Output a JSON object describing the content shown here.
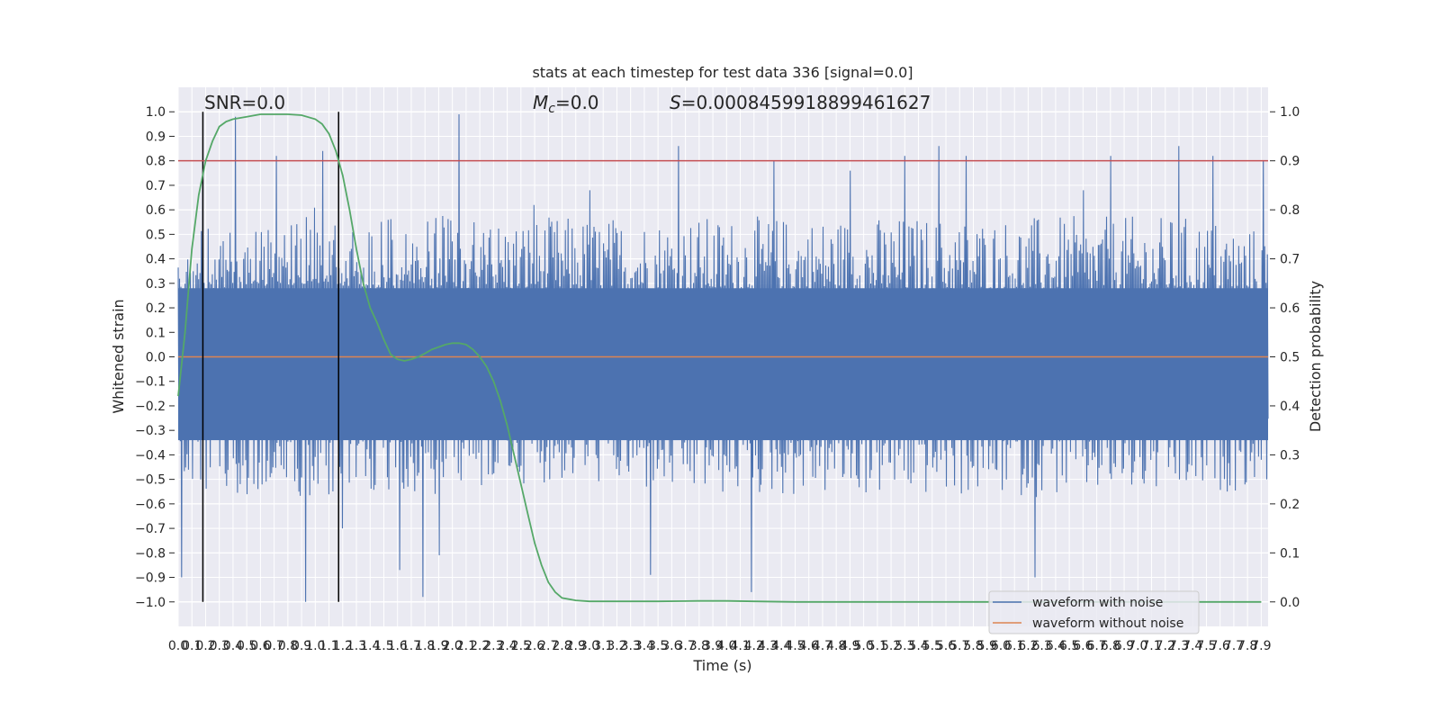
{
  "chart_data": {
    "type": "line",
    "title": "stats at each timestep for test data 336 [signal=0.0]",
    "xlabel": "Time (s)",
    "ylabel_left": "Whitened strain",
    "ylabel_right": "Detection probability",
    "annotations": {
      "snr": "SNR=0.0",
      "mc_symbol": "M",
      "mc_sub": "c",
      "mc_value": "=0.0",
      "s_symbol": "S",
      "s_value": "=0.0008459918899461627"
    },
    "xlim": [
      0.0,
      7.95
    ],
    "ylim_left": [
      -1.1,
      1.1
    ],
    "ylim_right": [
      -0.05,
      1.05
    ],
    "x_ticks": [
      "0.0",
      "0.1",
      "0.2",
      "0.3",
      "0.4",
      "0.5",
      "0.6",
      "0.7",
      "0.8",
      "0.9",
      "1.0",
      "1.1",
      "1.2",
      "1.3",
      "1.4",
      "1.5",
      "1.6",
      "1.7",
      "1.8",
      "1.9",
      "2.0",
      "2.1",
      "2.2",
      "2.3",
      "2.4",
      "2.5",
      "2.6",
      "2.7",
      "2.8",
      "2.9",
      "3.0",
      "3.1",
      "3.2",
      "3.3",
      "3.4",
      "3.5",
      "3.6",
      "3.7",
      "3.8",
      "3.9",
      "4.0",
      "4.1",
      "4.2",
      "4.3",
      "4.4",
      "4.5",
      "4.6",
      "4.7",
      "4.8",
      "4.9",
      "5.0",
      "5.1",
      "5.2",
      "5.3",
      "5.4",
      "5.5",
      "5.6",
      "5.7",
      "5.8",
      "5.9",
      "6.0",
      "6.1",
      "6.2",
      "6.3",
      "6.4",
      "6.5",
      "6.6",
      "6.7",
      "6.8",
      "6.9",
      "7.0",
      "7.1",
      "7.2",
      "7.3",
      "7.4",
      "7.5",
      "7.6",
      "7.7",
      "7.8",
      "7.9"
    ],
    "y_ticks_left": [
      "−1.0",
      "−0.9",
      "−0.8",
      "−0.7",
      "−0.6",
      "−0.5",
      "−0.4",
      "−0.3",
      "−0.2",
      "−0.1",
      "0.0",
      "0.1",
      "0.2",
      "0.3",
      "0.4",
      "0.5",
      "0.6",
      "0.7",
      "0.8",
      "0.9",
      "1.0"
    ],
    "y_ticks_right": [
      "0.0",
      "0.1",
      "0.2",
      "0.3",
      "0.4",
      "0.5",
      "0.6",
      "0.7",
      "0.8",
      "0.9",
      "1.0"
    ],
    "vertical_markers_x": [
      0.18,
      1.17
    ],
    "threshold_right": 0.9,
    "noise_envelope": {
      "x": [
        0.0,
        0.5,
        1.0,
        1.5,
        2.0,
        2.5,
        3.0,
        3.5,
        4.0,
        4.5,
        5.0,
        5.5,
        6.0,
        6.5,
        7.0,
        7.5,
        7.95
      ],
      "upper": [
        0.45,
        0.5,
        0.55,
        0.5,
        0.5,
        0.5,
        0.5,
        0.5,
        0.5,
        0.5,
        0.5,
        0.5,
        0.5,
        0.5,
        0.5,
        0.5,
        0.45
      ],
      "lower": [
        -0.45,
        -0.5,
        -0.5,
        -0.5,
        -0.5,
        -0.45,
        -0.45,
        -0.5,
        -0.5,
        -0.5,
        -0.5,
        -0.5,
        -0.5,
        -0.5,
        -0.5,
        -0.5,
        -0.45
      ]
    },
    "noise_peaks": {
      "x": [
        0.02,
        0.18,
        0.42,
        0.72,
        0.93,
        1.05,
        1.2,
        1.62,
        1.78,
        1.9,
        2.05,
        2.6,
        3.0,
        3.45,
        3.65,
        4.18,
        4.35,
        4.9,
        5.3,
        5.55,
        5.75,
        6.25,
        6.6,
        6.8,
        7.3,
        7.55,
        7.92
      ],
      "val": [
        -0.9,
        0.72,
        0.98,
        0.82,
        -1.0,
        0.84,
        -0.7,
        -0.87,
        -0.98,
        -0.81,
        0.99,
        0.62,
        0.68,
        -0.89,
        0.86,
        -0.96,
        0.8,
        0.76,
        0.82,
        0.86,
        0.82,
        -0.9,
        0.68,
        0.82,
        0.86,
        0.82,
        0.8
      ]
    },
    "series": [
      {
        "name": "waveform with noise",
        "color": "#4c72b0"
      },
      {
        "name": "waveform without noise",
        "color": "#dd8452",
        "x": [
          0.0,
          7.95
        ],
        "y": [
          0.0,
          0.0
        ]
      },
      {
        "color": "#55a868",
        "x": [
          0.0,
          0.05,
          0.1,
          0.15,
          0.2,
          0.25,
          0.3,
          0.35,
          0.4,
          0.5,
          0.6,
          0.7,
          0.8,
          0.9,
          1.0,
          1.05,
          1.1,
          1.15,
          1.2,
          1.25,
          1.3,
          1.35,
          1.4,
          1.45,
          1.5,
          1.55,
          1.6,
          1.65,
          1.7,
          1.75,
          1.8,
          1.85,
          1.9,
          1.95,
          2.0,
          2.05,
          2.1,
          2.15,
          2.2,
          2.25,
          2.3,
          2.35,
          2.4,
          2.45,
          2.5,
          2.55,
          2.6,
          2.65,
          2.7,
          2.75,
          2.8,
          2.9,
          3.0,
          3.2,
          3.5,
          3.8,
          4.0,
          4.2,
          4.5,
          5.0,
          6.0,
          7.0,
          7.9
        ],
        "y": [
          0.42,
          0.55,
          0.72,
          0.83,
          0.9,
          0.94,
          0.97,
          0.98,
          0.985,
          0.99,
          0.995,
          0.995,
          0.995,
          0.993,
          0.985,
          0.975,
          0.955,
          0.92,
          0.87,
          0.8,
          0.72,
          0.65,
          0.6,
          0.57,
          0.535,
          0.505,
          0.495,
          0.492,
          0.495,
          0.5,
          0.507,
          0.515,
          0.52,
          0.525,
          0.528,
          0.528,
          0.525,
          0.515,
          0.5,
          0.48,
          0.45,
          0.41,
          0.36,
          0.3,
          0.24,
          0.18,
          0.12,
          0.075,
          0.04,
          0.02,
          0.008,
          0.003,
          0.001,
          0.001,
          0.001,
          0.002,
          0.002,
          0.001,
          0.0,
          0.0,
          0.0,
          0.0,
          0.0
        ]
      }
    ],
    "legend_position": "bottom-right",
    "grid": true
  }
}
